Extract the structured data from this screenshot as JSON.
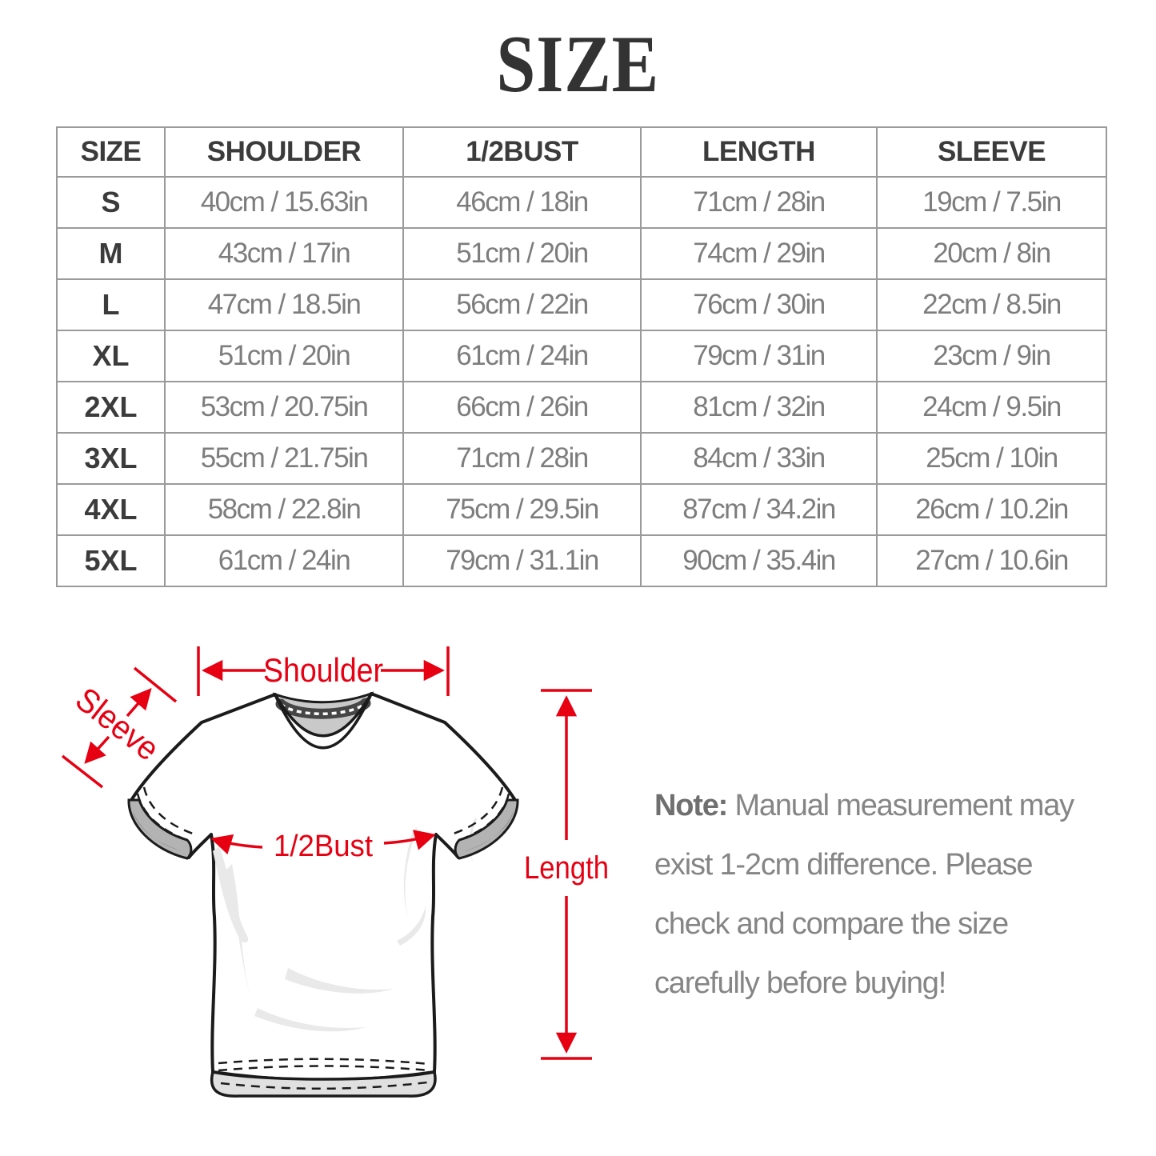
{
  "page": {
    "title": "SIZE"
  },
  "table": {
    "columns": [
      "SIZE",
      "SHOULDER",
      "1/2BUST",
      "LENGTH",
      "SLEEVE"
    ],
    "rows": [
      {
        "size": "S",
        "shoulder": "40cm / 15.63in",
        "half_bust": "46cm / 18in",
        "length": "71cm / 28in",
        "sleeve": "19cm / 7.5in"
      },
      {
        "size": "M",
        "shoulder": "43cm / 17in",
        "half_bust": "51cm / 20in",
        "length": "74cm / 29in",
        "sleeve": "20cm / 8in"
      },
      {
        "size": "L",
        "shoulder": "47cm / 18.5in",
        "half_bust": "56cm / 22in",
        "length": "76cm / 30in",
        "sleeve": "22cm / 8.5in"
      },
      {
        "size": "XL",
        "shoulder": "51cm / 20in",
        "half_bust": "61cm / 24in",
        "length": "79cm / 31in",
        "sleeve": "23cm / 9in"
      },
      {
        "size": "2XL",
        "shoulder": "53cm / 20.75in",
        "half_bust": "66cm / 26in",
        "length": "81cm / 32in",
        "sleeve": "24cm / 9.5in"
      },
      {
        "size": "3XL",
        "shoulder": "55cm / 21.75in",
        "half_bust": "71cm / 28in",
        "length": "84cm / 33in",
        "sleeve": "25cm / 10in"
      },
      {
        "size": "4XL",
        "shoulder": "58cm / 22.8in",
        "half_bust": "75cm / 29.5in",
        "length": "87cm / 34.2in",
        "sleeve": "26cm / 10.2in"
      },
      {
        "size": "5XL",
        "shoulder": "61cm / 24in",
        "half_bust": "79cm / 31.1in",
        "length": "90cm / 35.4in",
        "sleeve": "27cm / 10.6in"
      }
    ]
  },
  "diagram": {
    "accent_color": "#e60012",
    "labels": {
      "shoulder": "Shoulder",
      "sleeve": "Sleeve",
      "half_bust": "1/2Bust",
      "length": "Length"
    }
  },
  "note": {
    "label": "Note:",
    "line1": " Manual measurement may",
    "line2": "exist 1-2cm difference. Please",
    "line3": "check and compare the size",
    "line4": "carefully before buying!"
  }
}
